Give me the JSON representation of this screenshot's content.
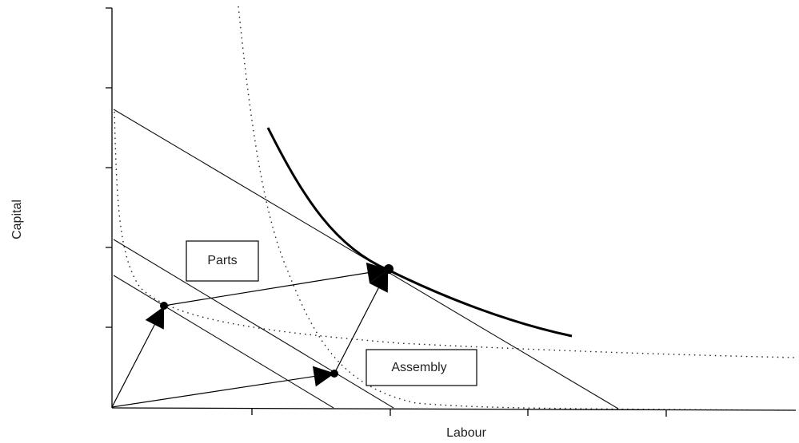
{
  "axes": {
    "y_label": "Capital",
    "x_label": "Labour"
  },
  "boxes": [
    {
      "label": "Parts"
    },
    {
      "label": "Assembly"
    }
  ]
}
